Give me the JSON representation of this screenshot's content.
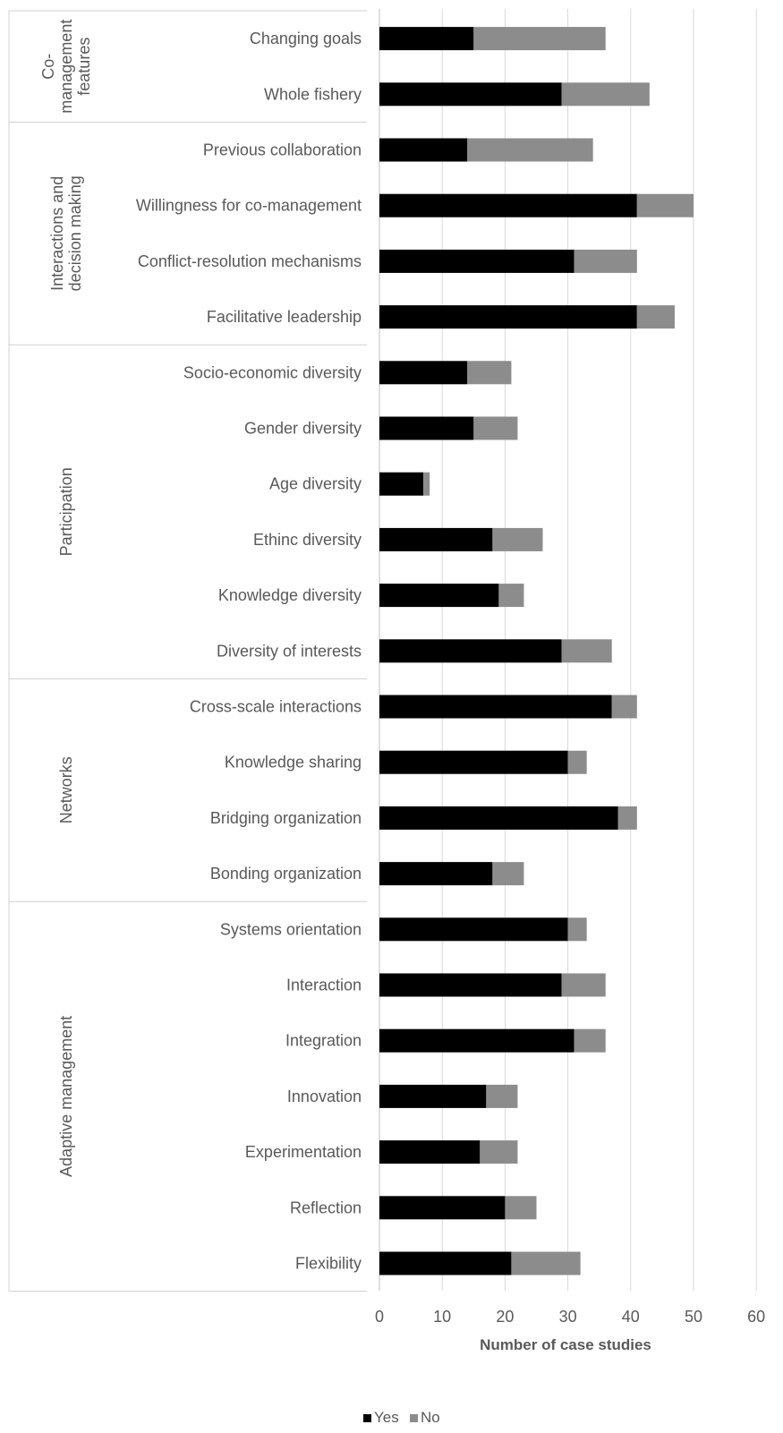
{
  "chart_data": {
    "type": "bar",
    "orientation": "horizontal",
    "stacked": true,
    "xlabel": "Number of case studies",
    "xlim": [
      0,
      60
    ],
    "xticks": [
      0,
      10,
      20,
      30,
      40,
      50,
      60
    ],
    "grid": "vertical",
    "legend_position": "bottom",
    "groups": [
      {
        "label": "Co-\nmanagement\nfeatures",
        "categories": [
          "Changing goals",
          "Whole fishery"
        ]
      },
      {
        "label": "Interactions and\ndecision making",
        "categories": [
          "Previous collaboration",
          "Willingness for co-management",
          "Conflict-resolution mechanisms",
          "Facilitative leadership"
        ]
      },
      {
        "label": "Participation",
        "categories": [
          "Socio-economic diversity",
          "Gender diversity",
          "Age diversity",
          "Ethinc diversity",
          "Knowledge diversity",
          "Diversity of interests"
        ]
      },
      {
        "label": "Networks",
        "categories": [
          "Cross-scale interactions",
          "Knowledge sharing",
          "Bridging organization",
          "Bonding organization"
        ]
      },
      {
        "label": "Adaptive management",
        "categories": [
          "Systems orientation",
          "Interaction",
          "Integration",
          "Innovation",
          "Experimentation",
          "Reflection",
          "Flexibility"
        ]
      }
    ],
    "categories": [
      "Changing goals",
      "Whole fishery",
      "Previous collaboration",
      "Willingness for co-management",
      "Conflict-resolution mechanisms",
      "Facilitative leadership",
      "Socio-economic diversity",
      "Gender diversity",
      "Age diversity",
      "Ethinc diversity",
      "Knowledge diversity",
      "Diversity of interests",
      "Cross-scale interactions",
      "Knowledge sharing",
      "Bridging organization",
      "Bonding organization",
      "Systems orientation",
      "Interaction",
      "Integration",
      "Innovation",
      "Experimentation",
      "Reflection",
      "Flexibility"
    ],
    "series": [
      {
        "name": "Yes",
        "color": "#000000",
        "values": [
          15,
          29,
          14,
          41,
          31,
          41,
          14,
          15,
          7,
          18,
          19,
          29,
          37,
          30,
          38,
          18,
          30,
          29,
          31,
          17,
          16,
          20,
          21
        ]
      },
      {
        "name": "No",
        "color": "#8c8c8c",
        "values": [
          21,
          14,
          20,
          9,
          10,
          6,
          7,
          7,
          1,
          8,
          4,
          8,
          4,
          3,
          3,
          5,
          3,
          7,
          5,
          5,
          6,
          5,
          11
        ]
      }
    ]
  }
}
